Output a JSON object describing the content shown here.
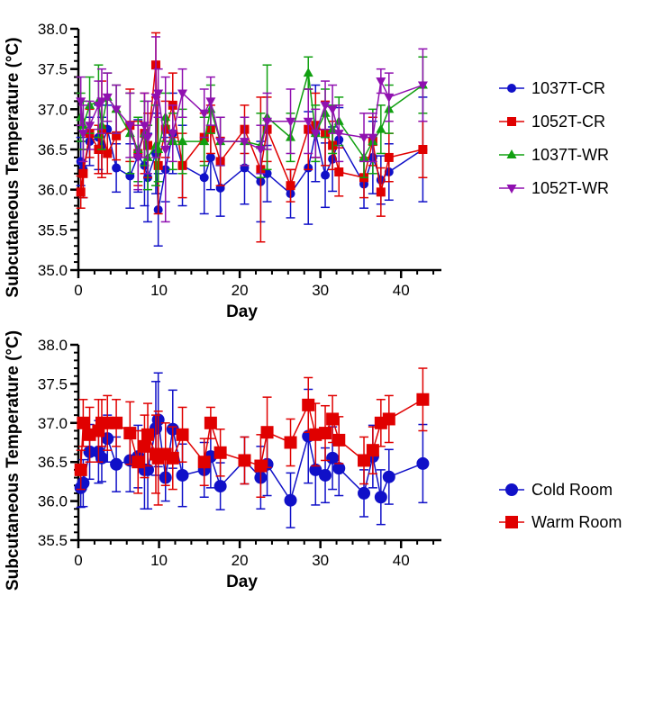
{
  "chart_data": [
    {
      "type": "line",
      "xlabel": "Day",
      "ylabel": "Subcutaneous Temperature (°C)",
      "xlim": [
        0,
        45
      ],
      "ylim": [
        35.0,
        38.0
      ],
      "xticks": [
        "0",
        "10",
        "20",
        "30",
        "40"
      ],
      "yticks": [
        "35.0",
        "35.5",
        "36.0",
        "36.5",
        "37.0",
        "37.5",
        "38.0"
      ],
      "legend": "right",
      "x": [
        0.3,
        0.6,
        1.4,
        2.5,
        2.9,
        3.6,
        4.7,
        6.4,
        7.4,
        8.2,
        8.6,
        9.6,
        9.9,
        10.8,
        11.7,
        12.9,
        15.6,
        16.4,
        17.6,
        20.6,
        22.6,
        23.4,
        26.3,
        28.5,
        29.4,
        30.6,
        31.5,
        32.3,
        35.4,
        36.5,
        37.5,
        38.5,
        42.7
      ],
      "series": [
        {
          "name": "1037T-CR",
          "color": "#1010c8",
          "marker": "circle",
          "values": [
            36.35,
            36.25,
            36.6,
            36.65,
            36.55,
            36.75,
            36.27,
            36.17,
            36.42,
            36.3,
            36.15,
            36.45,
            35.75,
            36.25,
            36.7,
            36.3,
            36.15,
            36.4,
            36.02,
            36.27,
            36.1,
            36.2,
            35.95,
            36.27,
            36.7,
            36.18,
            36.38,
            36.62,
            36.07,
            36.4,
            36.12,
            36.22,
            36.5
          ],
          "errors": [
            0.3,
            0.35,
            0.3,
            0.4,
            0.35,
            0.3,
            0.3,
            0.4,
            0.45,
            0.5,
            0.55,
            0.5,
            0.45,
            0.4,
            0.5,
            0.5,
            0.45,
            0.4,
            0.35,
            0.45,
            0.5,
            0.35,
            0.3,
            0.7,
            0.6,
            0.4,
            0.4,
            0.4,
            0.3,
            0.45,
            0.3,
            0.35,
            0.65
          ]
        },
        {
          "name": "1052T-CR",
          "color": "#e00000",
          "marker": "square",
          "values": [
            35.97,
            36.2,
            36.7,
            36.5,
            36.75,
            36.45,
            36.67,
            36.8,
            36.45,
            36.7,
            36.55,
            37.55,
            36.3,
            36.75,
            37.05,
            36.3,
            36.65,
            36.75,
            36.35,
            36.75,
            36.25,
            36.75,
            36.05,
            36.75,
            36.8,
            36.7,
            36.55,
            36.22,
            36.15,
            36.6,
            35.97,
            36.4,
            36.5
          ],
          "errors": [
            0.2,
            0.3,
            0.3,
            0.3,
            0.6,
            0.25,
            0.3,
            0.45,
            0.4,
            0.5,
            0.4,
            0.4,
            0.6,
            0.35,
            0.4,
            0.4,
            0.3,
            0.3,
            0.3,
            0.3,
            0.9,
            0.4,
            0.2,
            0.5,
            0.4,
            0.4,
            0.3,
            0.3,
            0.25,
            0.3,
            0.3,
            0.3,
            0.35
          ]
        },
        {
          "name": "1037T-WR",
          "color": "#10a010",
          "marker": "triangle-up",
          "values": [
            36.9,
            36.8,
            37.05,
            37.1,
            36.8,
            37.15,
            37.0,
            36.7,
            36.5,
            36.7,
            36.4,
            36.55,
            36.5,
            36.9,
            36.6,
            36.6,
            36.6,
            37.0,
            36.6,
            36.6,
            36.55,
            36.9,
            36.65,
            37.45,
            36.7,
            36.95,
            36.75,
            36.85,
            36.4,
            36.6,
            36.75,
            37.0,
            37.3
          ],
          "errors": [
            0.3,
            0.3,
            0.35,
            0.45,
            0.3,
            0.3,
            0.3,
            0.5,
            0.4,
            0.4,
            0.4,
            0.5,
            0.4,
            0.3,
            0.35,
            0.4,
            0.3,
            0.3,
            0.3,
            0.3,
            0.4,
            0.65,
            0.3,
            0.2,
            0.35,
            0.3,
            0.3,
            0.3,
            0.25,
            0.4,
            0.3,
            0.3,
            0.35
          ]
        },
        {
          "name": "1052T-WR",
          "color": "#9010b0",
          "marker": "triangle-down",
          "values": [
            37.1,
            36.7,
            36.8,
            37.05,
            37.1,
            37.15,
            37.0,
            36.8,
            36.4,
            36.8,
            36.65,
            37.15,
            37.2,
            36.5,
            36.7,
            37.2,
            36.95,
            37.1,
            36.6,
            36.6,
            36.5,
            36.85,
            36.85,
            36.85,
            36.7,
            37.05,
            37.0,
            36.7,
            36.65,
            36.65,
            37.35,
            37.15,
            37.3
          ],
          "errors": [
            0.3,
            0.35,
            0.3,
            0.3,
            0.4,
            0.3,
            0.3,
            0.4,
            0.4,
            0.4,
            0.45,
            0.75,
            0.3,
            0.9,
            0.35,
            0.3,
            0.3,
            0.3,
            0.3,
            0.3,
            0.3,
            0.35,
            0.4,
            0.4,
            0.3,
            0.3,
            0.3,
            0.35,
            0.3,
            0.3,
            0.15,
            0.3,
            0.45
          ]
        }
      ]
    },
    {
      "type": "line",
      "xlabel": "Day",
      "ylabel": "Subcutaneous Temperature (°C)",
      "xlim": [
        0,
        45
      ],
      "ylim": [
        35.5,
        38.0
      ],
      "xticks": [
        "0",
        "10",
        "20",
        "30",
        "40"
      ],
      "yticks": [
        "35.5",
        "36.0",
        "36.5",
        "37.0",
        "37.5",
        "38.0"
      ],
      "legend": "right",
      "x": [
        0.3,
        0.6,
        1.4,
        2.5,
        2.9,
        3.6,
        4.7,
        6.4,
        7.4,
        8.2,
        8.6,
        9.6,
        9.9,
        10.8,
        11.7,
        12.9,
        15.6,
        16.4,
        17.6,
        20.6,
        22.6,
        23.4,
        26.3,
        28.5,
        29.4,
        30.6,
        31.5,
        32.3,
        35.4,
        36.5,
        37.5,
        38.5,
        42.7
      ],
      "series": [
        {
          "name": "Cold Room",
          "color": "#1010c8",
          "marker": "circle",
          "values": [
            36.17,
            36.23,
            36.63,
            36.63,
            36.55,
            36.8,
            36.47,
            36.52,
            36.57,
            36.4,
            36.4,
            36.93,
            37.04,
            36.3,
            36.92,
            36.33,
            36.4,
            36.57,
            36.19,
            36.52,
            36.3,
            36.47,
            36.01,
            36.83,
            36.4,
            36.33,
            36.55,
            36.42,
            36.1,
            36.57,
            36.05,
            36.31,
            36.48
          ],
          "errors": [
            0.25,
            0.3,
            0.35,
            0.4,
            0.3,
            0.3,
            0.35,
            0.4,
            0.4,
            0.5,
            0.5,
            0.6,
            0.6,
            0.3,
            0.5,
            0.4,
            0.35,
            0.4,
            0.3,
            0.3,
            0.4,
            0.4,
            0.35,
            0.6,
            0.45,
            0.35,
            0.4,
            0.35,
            0.3,
            0.4,
            0.35,
            0.35,
            0.5
          ]
        },
        {
          "name": "Warm Room",
          "color": "#e00000",
          "marker": "square",
          "values": [
            36.4,
            37.0,
            36.85,
            36.9,
            37.0,
            37.0,
            37.0,
            36.87,
            36.5,
            36.7,
            36.85,
            36.6,
            36.55,
            36.6,
            36.55,
            36.85,
            36.5,
            37.0,
            36.62,
            36.52,
            36.45,
            36.88,
            36.75,
            37.23,
            36.85,
            36.87,
            37.05,
            36.78,
            36.52,
            36.65,
            37.0,
            37.05,
            37.3
          ],
          "errors": [
            0.25,
            0.3,
            0.35,
            0.4,
            0.3,
            0.35,
            0.3,
            0.4,
            0.4,
            0.4,
            0.4,
            0.5,
            0.6,
            0.4,
            0.4,
            0.35,
            0.3,
            0.2,
            0.3,
            0.3,
            0.4,
            0.45,
            0.3,
            0.35,
            0.4,
            0.35,
            0.3,
            0.3,
            0.3,
            0.3,
            0.3,
            0.3,
            0.4
          ]
        }
      ]
    }
  ]
}
